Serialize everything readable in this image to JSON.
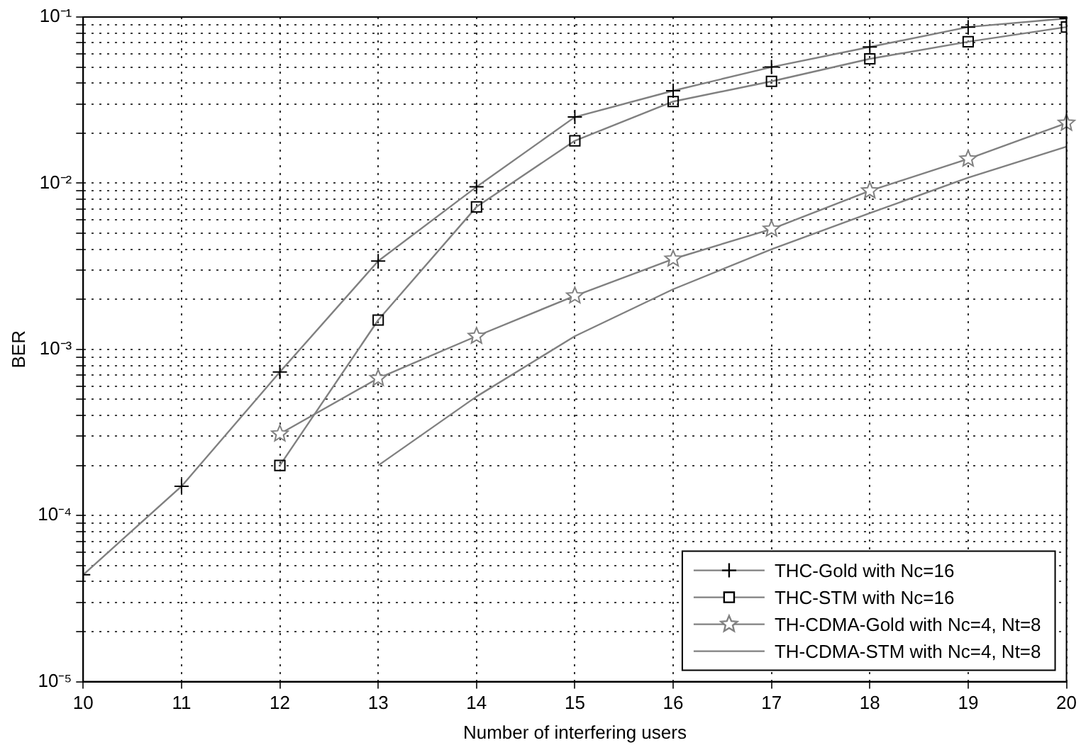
{
  "chart_data": {
    "type": "line",
    "xlabel": "Number of interfering users",
    "ylabel": "BER",
    "log": "y",
    "grid": true,
    "legend": "bottom right",
    "line_style": "solid",
    "x": [
      10,
      11,
      12,
      13,
      14,
      15,
      16,
      17,
      18,
      19,
      20
    ],
    "xlim": [
      10,
      20
    ],
    "xticks": [
      10,
      11,
      12,
      13,
      14,
      15,
      16,
      17,
      18,
      19,
      20
    ],
    "ylim": [
      1e-05,
      0.1
    ],
    "yticks": [
      {
        "value": 1e-05,
        "label": "10⁻⁵"
      },
      {
        "value": 2e-05,
        "label": null
      },
      {
        "value": 3e-05,
        "label": null
      },
      {
        "value": 4e-05,
        "label": null
      },
      {
        "value": 5e-05,
        "label": null
      },
      {
        "value": 6e-05,
        "label": null
      },
      {
        "value": 7e-05,
        "label": null
      },
      {
        "value": 8e-05,
        "label": null
      },
      {
        "value": 9e-05,
        "label": null
      },
      {
        "value": 0.0001,
        "label": "10⁻⁴"
      },
      {
        "value": 0.0002,
        "label": null
      },
      {
        "value": 0.0003,
        "label": null
      },
      {
        "value": 0.0004,
        "label": null
      },
      {
        "value": 0.0005,
        "label": null
      },
      {
        "value": 0.0006,
        "label": null
      },
      {
        "value": 0.0007,
        "label": null
      },
      {
        "value": 0.0008,
        "label": null
      },
      {
        "value": 0.0009,
        "label": null
      },
      {
        "value": 0.001,
        "label": "10⁻³"
      },
      {
        "value": 0.002,
        "label": null
      },
      {
        "value": 0.003,
        "label": null
      },
      {
        "value": 0.004,
        "label": null
      },
      {
        "value": 0.005,
        "label": null
      },
      {
        "value": 0.006,
        "label": null
      },
      {
        "value": 0.007,
        "label": null
      },
      {
        "value": 0.008,
        "label": null
      },
      {
        "value": 0.009,
        "label": null
      },
      {
        "value": 0.01,
        "label": "10⁻²"
      },
      {
        "value": 0.02,
        "label": null
      },
      {
        "value": 0.03,
        "label": null
      },
      {
        "value": 0.04,
        "label": null
      },
      {
        "value": 0.05,
        "label": null
      },
      {
        "value": 0.06,
        "label": null
      },
      {
        "value": 0.07,
        "label": null
      },
      {
        "value": 0.08,
        "label": null
      },
      {
        "value": 0.09,
        "label": null
      },
      {
        "value": 0.1,
        "label": "10⁻¹"
      }
    ],
    "series": [
      {
        "name": "THC-Gold with Nc=16",
        "color": "#808080",
        "marker": "cross",
        "values": [
          4.4e-05,
          0.00015,
          0.00073,
          0.0034,
          0.0095,
          0.025,
          0.036,
          0.05,
          0.066,
          0.087,
          0.098
        ]
      },
      {
        "name": "THC-STM with Nc=16",
        "color": "#808080",
        "marker": "square",
        "values": [
          null,
          null,
          0.0002,
          0.0015,
          0.0072,
          0.018,
          0.031,
          0.041,
          0.056,
          0.071,
          0.087
        ]
      },
      {
        "name": "TH-CDMA-Gold with Nc=4, Nt=8",
        "color": "#808080",
        "marker": "star",
        "values": [
          null,
          null,
          0.00031,
          0.00067,
          0.0012,
          0.0021,
          0.0035,
          0.0053,
          0.009,
          0.014,
          0.023
        ]
      },
      {
        "name": "TH-CDMA-STM with Nc=4, Nt=8",
        "color": "#808080",
        "marker": "none",
        "values": [
          null,
          null,
          null,
          0.0002,
          0.00052,
          0.0012,
          0.0023,
          0.004,
          0.0066,
          0.0108,
          0.0166
        ]
      }
    ]
  }
}
